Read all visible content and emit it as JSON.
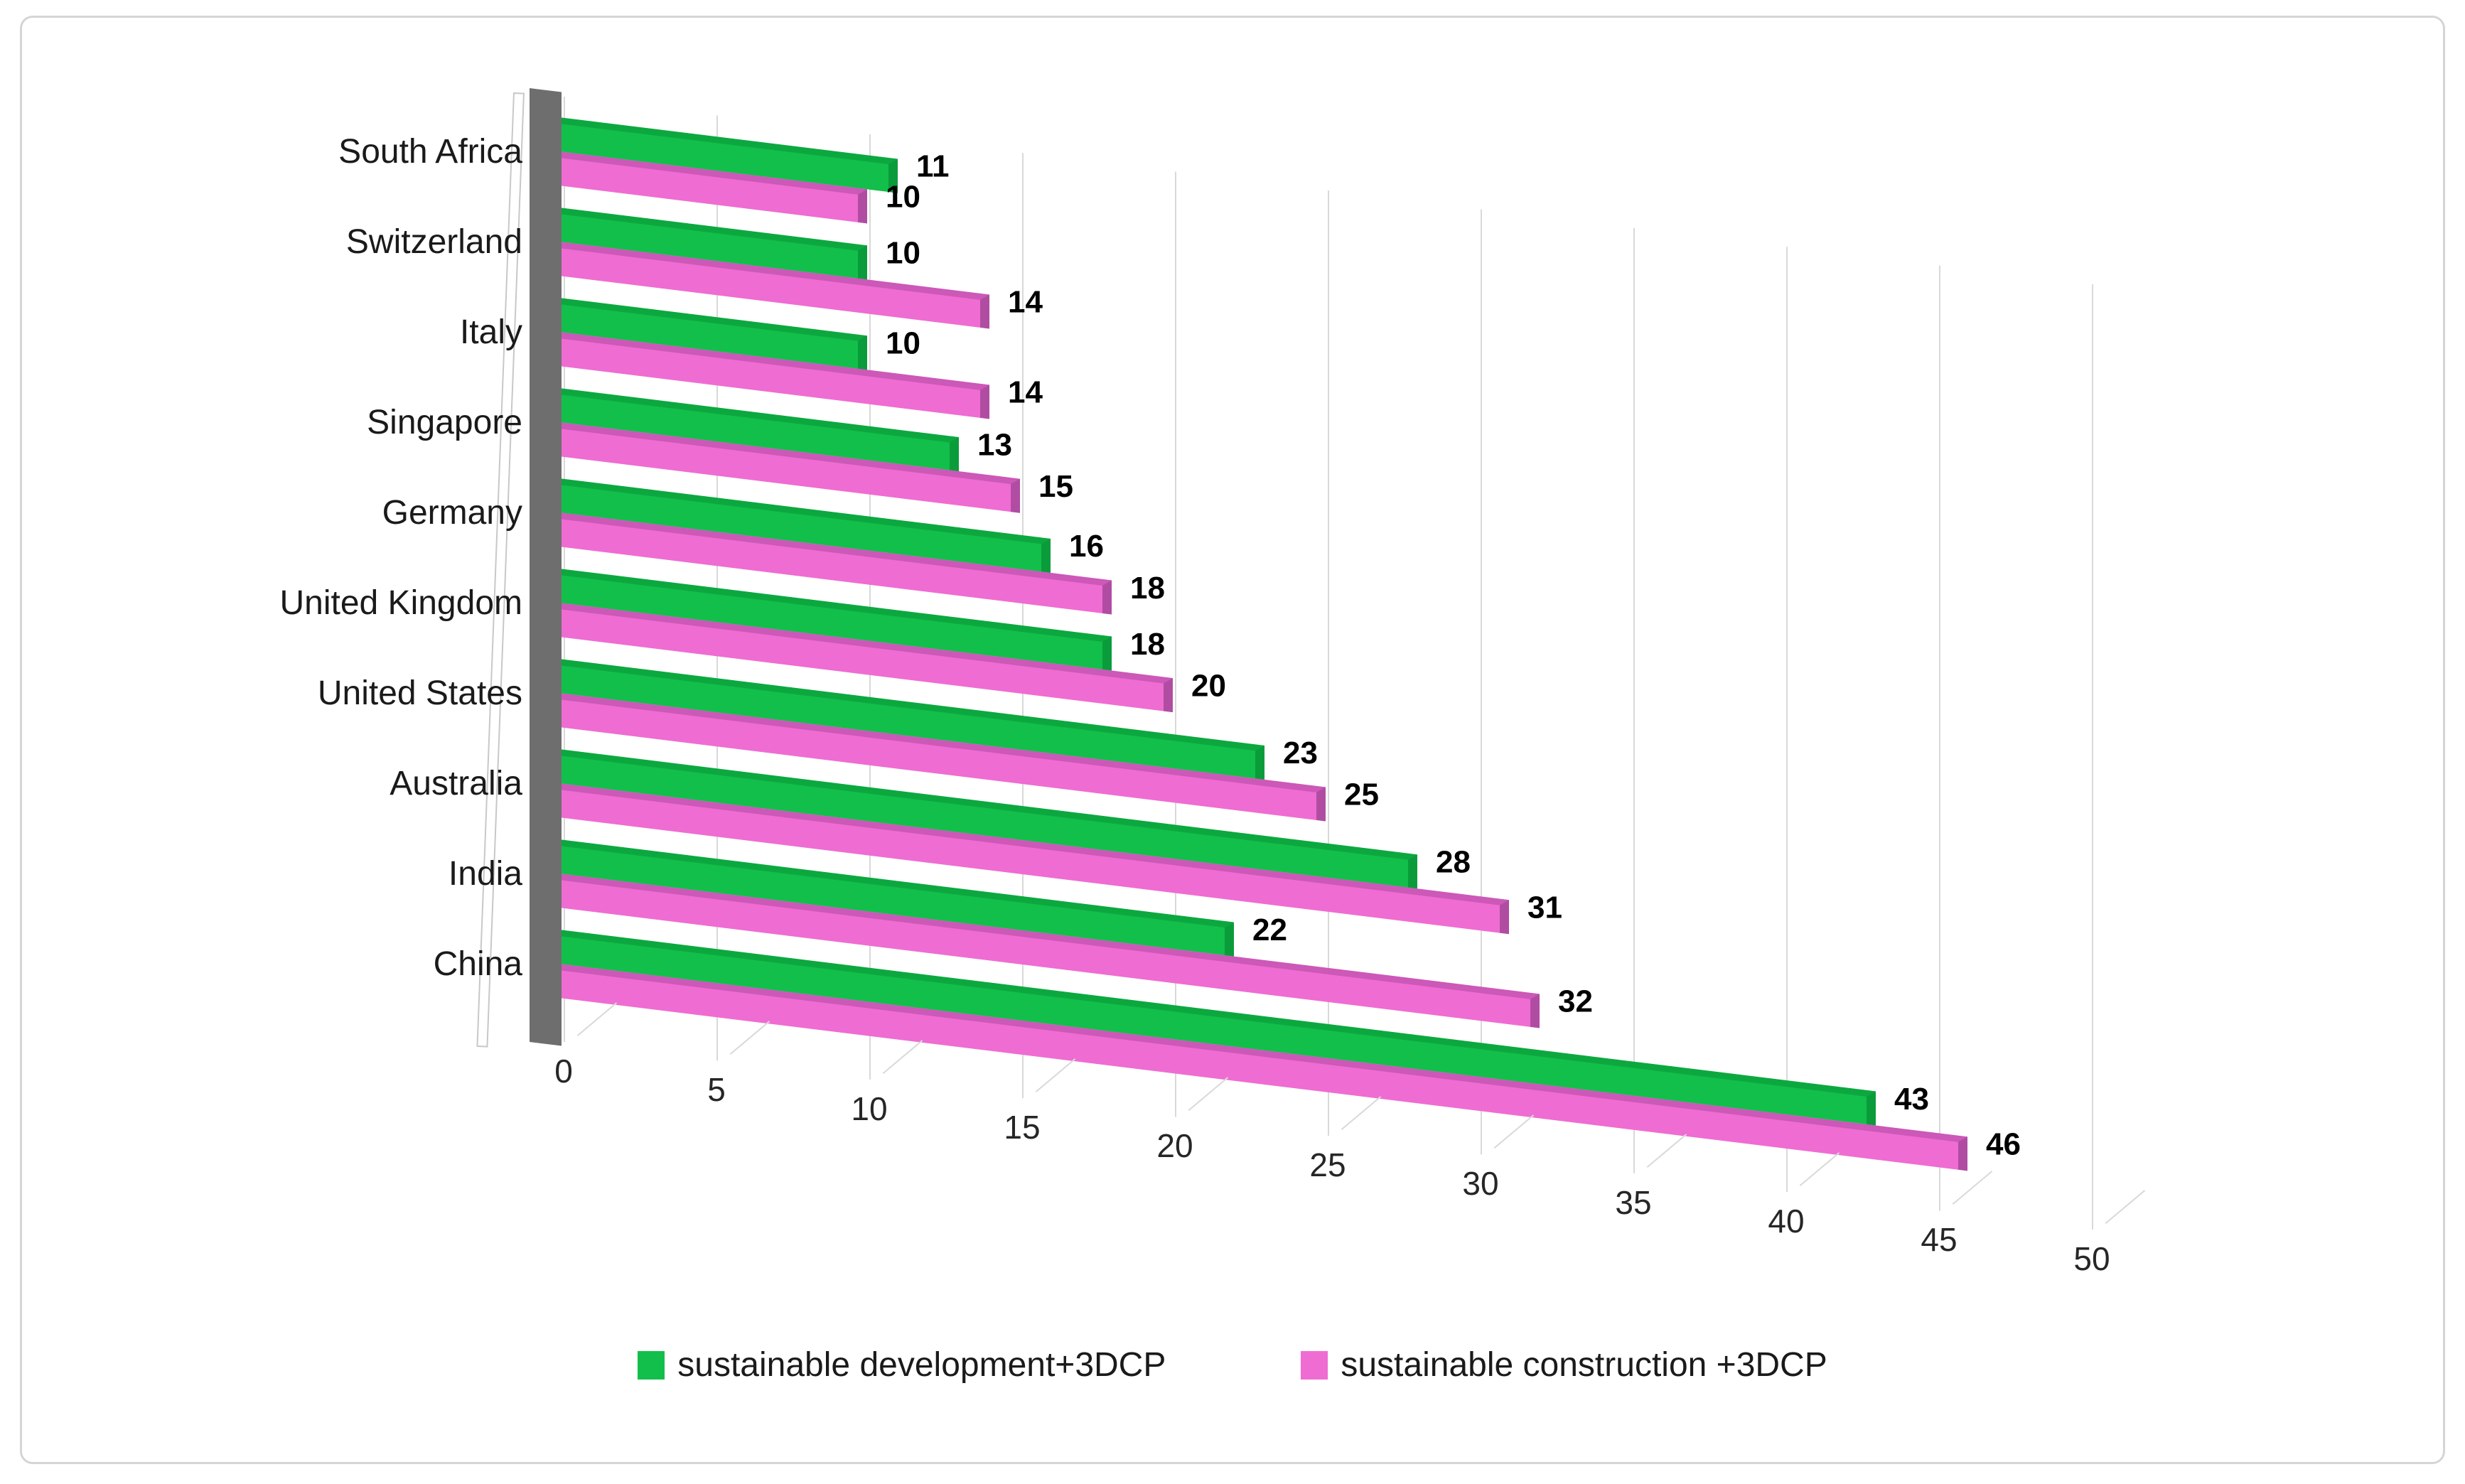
{
  "chart_data": {
    "type": "bar",
    "orientation": "horizontal",
    "style": "3d",
    "title": "",
    "xlabel": "",
    "ylabel": "",
    "categories": [
      "South Africa",
      "Switzerland",
      "Italy",
      "Singapore",
      "Germany",
      "United Kingdom",
      "United States",
      "Australia",
      "India",
      "China"
    ],
    "series": [
      {
        "name": "sustainable development+3DCP",
        "color": "#12bf4b",
        "values": [
          11,
          10,
          10,
          13,
          16,
          18,
          23,
          28,
          22,
          43
        ]
      },
      {
        "name": "sustainable construction +3DCP",
        "color": "#ef6cd2",
        "values": [
          10,
          14,
          14,
          15,
          18,
          20,
          25,
          31,
          32,
          46
        ]
      }
    ],
    "x_ticks": [
      0,
      5,
      10,
      15,
      20,
      25,
      30,
      35,
      40,
      45,
      50
    ],
    "xlim": [
      0,
      50
    ],
    "grid": true,
    "legend_position": "bottom",
    "data_labels": true
  },
  "colors": {
    "series_green": "#12bf4b",
    "series_green_top": "#0ca83f",
    "series_green_cap": "#0a9c3a",
    "series_pink": "#ef6cd2",
    "series_pink_top": "#cc58b8",
    "series_pink_cap": "#b04da2",
    "wall_shadow": "#6e6e6e",
    "gridline": "#d9d9d9",
    "text": "#1a1a1a",
    "card_border": "#d5d5d5"
  }
}
